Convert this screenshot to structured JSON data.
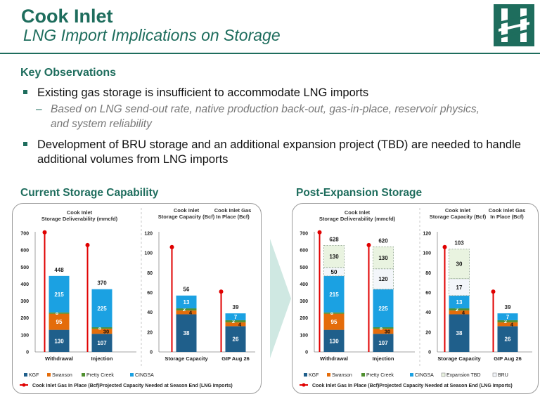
{
  "header": {
    "title": "Cook Inlet",
    "subtitle": "LNG Import Implications on Storage"
  },
  "observations": {
    "heading": "Key Observations",
    "bullet1": "Existing gas storage is insufficient to accommodate LNG imports",
    "bullet1_sub": "Based on LNG send-out rate, native production back-out, gas-in-place, reservoir physics, and system reliability",
    "bullet1_sub_dash": "–",
    "bullet2": "Development of BRU storage and an additional expansion project (TBD) are needed to handle additional volumes from LNG imports"
  },
  "colors": {
    "brand": "#1e6d5d",
    "KGF": "#1f5f8b",
    "Swanson": "#e46c0a",
    "Pretty Creek": "#4f8f2f",
    "CINGSA": "#1ba1e2",
    "Expansion TBD": "#e9f3e0",
    "BRU": "#f3f6fa",
    "marker": "#e00000"
  },
  "chart_data": [
    {
      "section_title": "Current Storage Capability",
      "legend": [
        "KGF",
        "Swanson",
        "Pretty Creek",
        "CINGSA"
      ],
      "marker_legend": "Cook Inlet Gas In Place (Bcf)Projected Capacity Needed at Season End (LNG Imports)",
      "charts": [
        {
          "type": "bar",
          "stacked": true,
          "title": "Cook Inlet Storage Deliverability (mmcfd)",
          "ylim": [
            0,
            700
          ],
          "yticks": [
            0,
            100,
            200,
            300,
            400,
            500,
            600,
            700
          ],
          "categories": [
            "Withdrawal",
            "Injection"
          ],
          "series": [
            {
              "name": "KGF",
              "values": [
                130,
                107
              ]
            },
            {
              "name": "Swanson",
              "values": [
                95,
                30
              ]
            },
            {
              "name": "Pretty Creek",
              "values": [
                8,
                8
              ]
            },
            {
              "name": "CINGSA",
              "values": [
                215,
                225
              ]
            }
          ],
          "totals": [
            448,
            370
          ],
          "markers": [
            705,
            630
          ]
        },
        {
          "type": "bar",
          "stacked": true,
          "titles": [
            "Cook Inlet Storage Capacity (Bcf)",
            "Cook Inlet Gas In Place (Bcf)"
          ],
          "ylim": [
            0,
            120
          ],
          "yticks": [
            0,
            20,
            40,
            60,
            80,
            100,
            120
          ],
          "categories": [
            "Storage Capacity",
            "GIP Aug 26"
          ],
          "series": [
            {
              "name": "KGF",
              "values": [
                38,
                26
              ]
            },
            {
              "name": "Swanson",
              "values": [
                4,
                4
              ]
            },
            {
              "name": "Pretty Creek",
              "values": [
                2,
                2
              ]
            },
            {
              "name": "CINGSA",
              "values": [
                13,
                7
              ]
            }
          ],
          "totals": [
            56,
            39
          ],
          "markers": [
            106,
            61
          ]
        }
      ]
    },
    {
      "section_title": "Post-Expansion Storage",
      "legend": [
        "KGF",
        "Swanson",
        "Pretty Creek",
        "CINGSA",
        "Expansion TBD",
        "BRU"
      ],
      "marker_legend": "Cook Inlet Gas In Place (Bcf)Projected Capacity Needed at Season End (LNG Imports)",
      "charts": [
        {
          "type": "bar",
          "stacked": true,
          "title": "Cook Inlet Storage Deliverability (mmcfd)",
          "ylim": [
            0,
            700
          ],
          "yticks": [
            0,
            100,
            200,
            300,
            400,
            500,
            600,
            700
          ],
          "categories": [
            "Withdrawal",
            "Injection"
          ],
          "series": [
            {
              "name": "KGF",
              "values": [
                130,
                107
              ]
            },
            {
              "name": "Swanson",
              "values": [
                95,
                30
              ]
            },
            {
              "name": "Pretty Creek",
              "values": [
                8,
                8
              ]
            },
            {
              "name": "CINGSA",
              "values": [
                215,
                225
              ]
            },
            {
              "name": "BRU",
              "values": [
                50,
                120
              ]
            },
            {
              "name": "Expansion TBD",
              "values": [
                130,
                130
              ]
            }
          ],
          "totals": [
            628,
            620
          ],
          "markers": [
            705,
            630
          ]
        },
        {
          "type": "bar",
          "stacked": true,
          "titles": [
            "Cook Inlet Storage Capacity (Bcf)",
            "Cook Inlet Gas In Place (Bcf)"
          ],
          "ylim": [
            0,
            120
          ],
          "yticks": [
            0,
            20,
            40,
            60,
            80,
            100,
            120
          ],
          "categories": [
            "Storage Capacity",
            "GIP Aug 26"
          ],
          "series": [
            {
              "name": "KGF",
              "values": [
                38,
                26
              ]
            },
            {
              "name": "Swanson",
              "values": [
                4,
                4
              ]
            },
            {
              "name": "Pretty Creek",
              "values": [
                2,
                2
              ]
            },
            {
              "name": "CINGSA",
              "values": [
                13,
                7
              ]
            },
            {
              "name": "BRU",
              "values": [
                17,
                0
              ]
            },
            {
              "name": "Expansion TBD",
              "values": [
                30,
                0
              ]
            }
          ],
          "totals": [
            103,
            39
          ],
          "markers": [
            106,
            61
          ]
        }
      ]
    }
  ]
}
